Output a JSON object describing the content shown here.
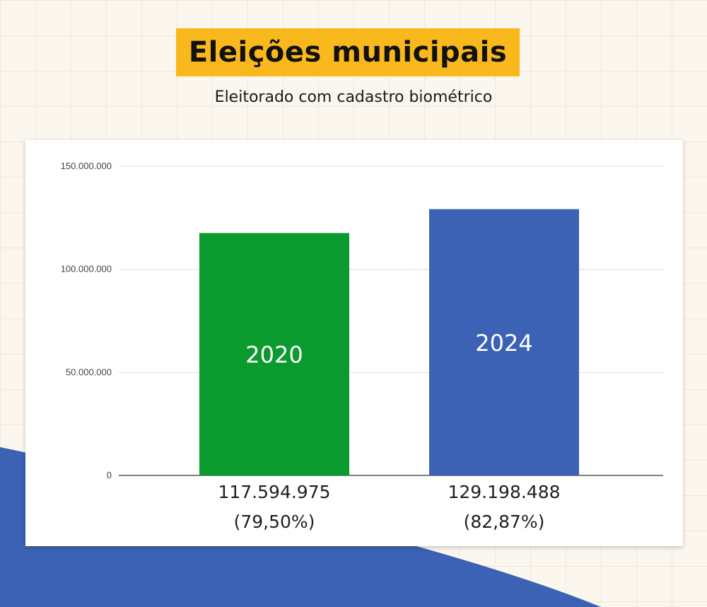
{
  "header": {
    "title": "Eleições municipais",
    "subtitle": "Eleitorado com cadastro biométrico"
  },
  "colors": {
    "background": "#fbf7ee",
    "title_highlight": "#f9b81b",
    "bar_2020": "#0a9a2e",
    "bar_2024": "#3b62b5",
    "decor_shape": "#3b62b5"
  },
  "chart_data": {
    "type": "bar",
    "categories": [
      "2020",
      "2024"
    ],
    "values": [
      117594975,
      129198488
    ],
    "value_labels": [
      "117.594.975",
      "129.198.488"
    ],
    "percent_labels": [
      "(79,50%)",
      "(82,87%)"
    ],
    "bar_colors": [
      "#0a9a2e",
      "#3b62b5"
    ],
    "title": "Eleições municipais",
    "subtitle": "Eleitorado com cadastro biométrico",
    "xlabel": "",
    "ylabel": "",
    "ylim": [
      0,
      150000000
    ],
    "yticks": [
      0,
      50000000,
      100000000,
      150000000
    ],
    "ytick_labels": [
      "0",
      "50.000.000",
      "100.000.000",
      "150.000.000"
    ],
    "grid": true,
    "legend": "none"
  }
}
